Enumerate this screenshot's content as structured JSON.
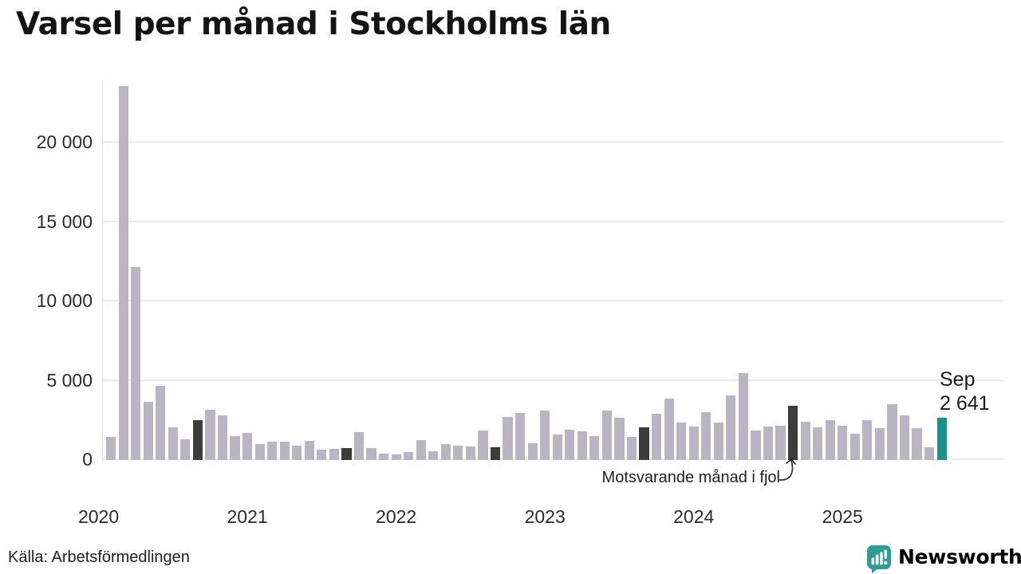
{
  "title": "Varsel per månad i Stockholms län",
  "source": "Källa: Arbetsförmedlingen",
  "branding": {
    "wordmark": "Newsworthy",
    "color": "#2d9d93",
    "icon": "speech-bubble-bar-chart"
  },
  "annotations": {
    "prev_year": "Motsvarande månad i fjol",
    "current": {
      "month": "Sep",
      "value": "2 641"
    }
  },
  "chart_data": {
    "type": "bar",
    "title": "Varsel per månad i Stockholms län",
    "xlabel": "",
    "ylabel": "",
    "ylim": [
      0,
      24000
    ],
    "grid": true,
    "legend_position": "none",
    "colors": {
      "default": "#b9b5c3",
      "prev_year_september": "#3c3c3c",
      "current_month": "#17948a"
    },
    "y_ticks": [
      {
        "value": 0,
        "label": "0"
      },
      {
        "value": 5000,
        "label": "5 000"
      },
      {
        "value": 10000,
        "label": "10 000"
      },
      {
        "value": 15000,
        "label": "15 000"
      },
      {
        "value": 20000,
        "label": "20 000"
      }
    ],
    "x_ticks": [
      {
        "label": "2020",
        "month": "2020-01"
      },
      {
        "label": "2021",
        "month": "2021-01"
      },
      {
        "label": "2022",
        "month": "2022-01"
      },
      {
        "label": "2023",
        "month": "2023-01"
      },
      {
        "label": "2024",
        "month": "2024-01"
      },
      {
        "label": "2025",
        "month": "2025-01"
      }
    ],
    "series": [
      {
        "m": "2020-02",
        "v": 1450
      },
      {
        "m": "2020-03",
        "v": 23600
      },
      {
        "m": "2020-04",
        "v": 12150
      },
      {
        "m": "2020-05",
        "v": 3650
      },
      {
        "m": "2020-06",
        "v": 4700
      },
      {
        "m": "2020-07",
        "v": 2050
      },
      {
        "m": "2020-08",
        "v": 1300
      },
      {
        "m": "2020-09",
        "v": 2500,
        "hl": "prev"
      },
      {
        "m": "2020-10",
        "v": 3150
      },
      {
        "m": "2020-11",
        "v": 2800
      },
      {
        "m": "2020-12",
        "v": 1500
      },
      {
        "m": "2021-01",
        "v": 1700
      },
      {
        "m": "2021-02",
        "v": 1000
      },
      {
        "m": "2021-03",
        "v": 1150
      },
      {
        "m": "2021-04",
        "v": 1150
      },
      {
        "m": "2021-05",
        "v": 900
      },
      {
        "m": "2021-06",
        "v": 1200
      },
      {
        "m": "2021-07",
        "v": 650
      },
      {
        "m": "2021-08",
        "v": 700
      },
      {
        "m": "2021-09",
        "v": 750,
        "hl": "prev"
      },
      {
        "m": "2021-10",
        "v": 1750
      },
      {
        "m": "2021-11",
        "v": 750
      },
      {
        "m": "2021-12",
        "v": 400
      },
      {
        "m": "2022-01",
        "v": 350
      },
      {
        "m": "2022-02",
        "v": 500
      },
      {
        "m": "2022-03",
        "v": 1250
      },
      {
        "m": "2022-04",
        "v": 550
      },
      {
        "m": "2022-05",
        "v": 1000
      },
      {
        "m": "2022-06",
        "v": 900
      },
      {
        "m": "2022-07",
        "v": 850
      },
      {
        "m": "2022-08",
        "v": 1850
      },
      {
        "m": "2022-09",
        "v": 800,
        "hl": "prev"
      },
      {
        "m": "2022-10",
        "v": 2700
      },
      {
        "m": "2022-11",
        "v": 2950
      },
      {
        "m": "2022-12",
        "v": 1050
      },
      {
        "m": "2023-01",
        "v": 3100
      },
      {
        "m": "2023-02",
        "v": 1600
      },
      {
        "m": "2023-03",
        "v": 1900
      },
      {
        "m": "2023-04",
        "v": 1800
      },
      {
        "m": "2023-05",
        "v": 1500
      },
      {
        "m": "2023-06",
        "v": 3100
      },
      {
        "m": "2023-07",
        "v": 2650
      },
      {
        "m": "2023-08",
        "v": 1450
      },
      {
        "m": "2023-09",
        "v": 2050,
        "hl": "prev"
      },
      {
        "m": "2023-10",
        "v": 2900
      },
      {
        "m": "2023-11",
        "v": 3850
      },
      {
        "m": "2023-12",
        "v": 2350
      },
      {
        "m": "2024-01",
        "v": 2100
      },
      {
        "m": "2024-02",
        "v": 3000
      },
      {
        "m": "2024-03",
        "v": 2350
      },
      {
        "m": "2024-04",
        "v": 4050
      },
      {
        "m": "2024-05",
        "v": 5500
      },
      {
        "m": "2024-06",
        "v": 1850
      },
      {
        "m": "2024-07",
        "v": 2100
      },
      {
        "m": "2024-08",
        "v": 2150
      },
      {
        "m": "2024-09",
        "v": 3400,
        "hl": "prev"
      },
      {
        "m": "2024-10",
        "v": 2400
      },
      {
        "m": "2024-11",
        "v": 2050
      },
      {
        "m": "2024-12",
        "v": 2500
      },
      {
        "m": "2025-01",
        "v": 2150
      },
      {
        "m": "2025-02",
        "v": 1650
      },
      {
        "m": "2025-03",
        "v": 2500
      },
      {
        "m": "2025-04",
        "v": 2000
      },
      {
        "m": "2025-05",
        "v": 3500
      },
      {
        "m": "2025-06",
        "v": 2800
      },
      {
        "m": "2025-07",
        "v": 2000
      },
      {
        "m": "2025-08",
        "v": 800
      },
      {
        "m": "2025-09",
        "v": 2641,
        "hl": "current"
      }
    ]
  }
}
